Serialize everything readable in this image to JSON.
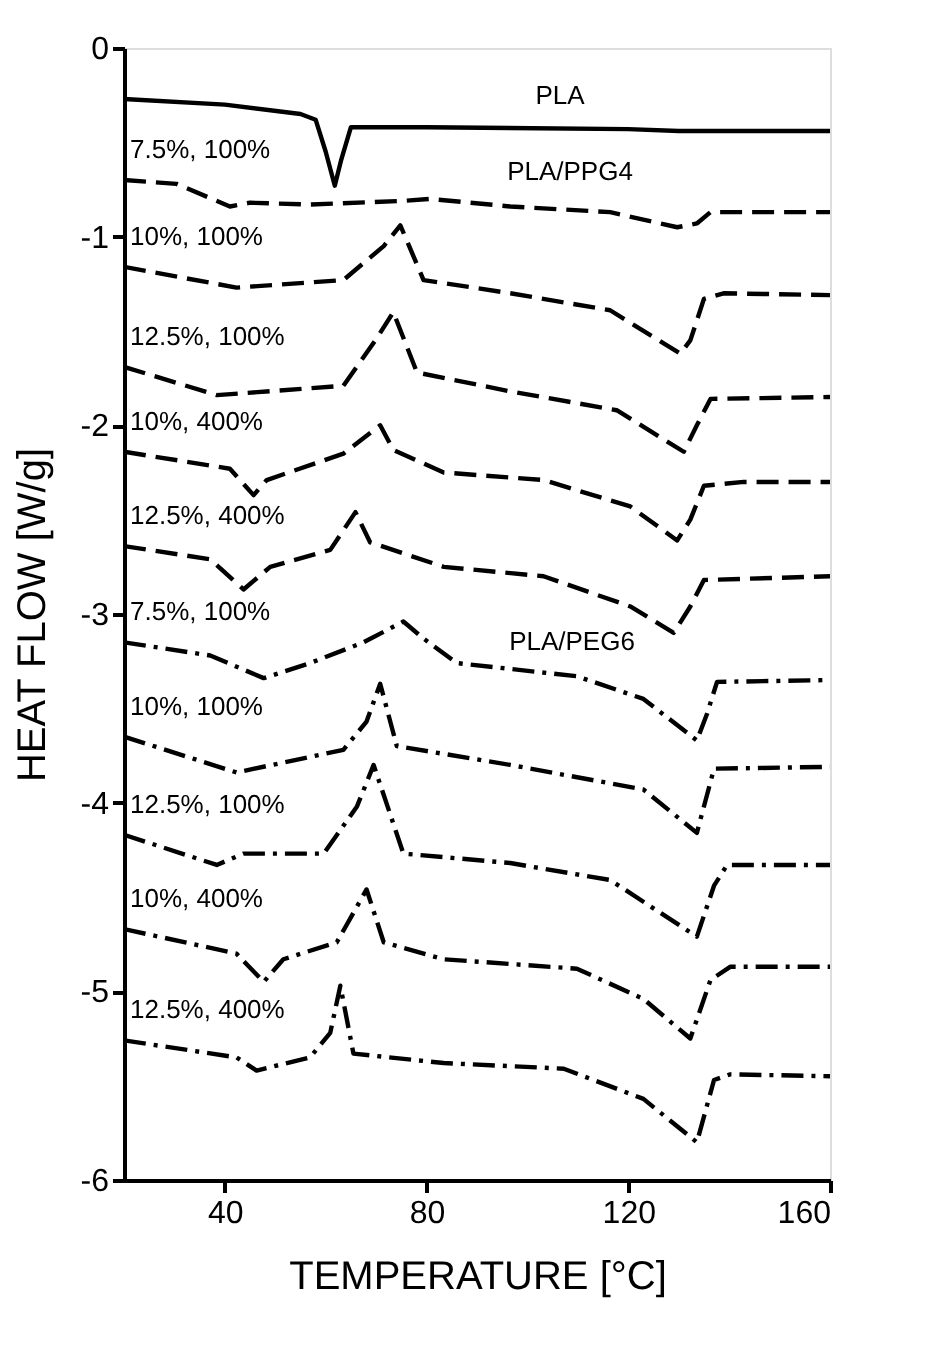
{
  "chart_data": {
    "type": "line",
    "xlabel": "TEMPERATURE [°C]",
    "ylabel": "HEAT FLOW [W/g]",
    "xlim": [
      20,
      160
    ],
    "ylim": [
      -6,
      0
    ],
    "xticks": [
      40,
      80,
      120,
      160
    ],
    "yticks": [
      -6,
      -5,
      -4,
      -3,
      -2,
      -1,
      0
    ],
    "grid": false,
    "marker": "none",
    "annotations": [
      "PLA",
      "PLA/PPG4",
      "PLA/PEG6"
    ],
    "series": [
      {
        "color": "#000000",
        "line_style": "solid",
        "x": [
          20,
          40,
          55,
          58,
          60,
          61.8,
          63,
          65,
          80,
          120,
          130,
          135,
          160
        ],
        "values": [
          -0.27,
          -0.3,
          -0.35,
          -0.38,
          -0.55,
          -0.73,
          -0.6,
          -0.42,
          -0.42,
          -0.43,
          -0.44,
          -0.44,
          -0.44
        ]
      },
      {
        "name": "7.5%, 100%",
        "color": "#000000",
        "line_style": "dashed",
        "x": [
          20,
          30.4,
          41,
          45,
          56.9,
          75.4,
          80.7,
          96.6,
          116.4,
          129.7,
          133.6,
          136.3,
          160
        ],
        "values": [
          -0.7,
          -0.72,
          -0.84,
          -0.82,
          -0.83,
          -0.81,
          -0.8,
          -0.84,
          -0.87,
          -0.95,
          -0.93,
          -0.87,
          -0.87
        ]
      },
      {
        "name": "10%, 100%",
        "color": "#000000",
        "line_style": "dashed",
        "x": [
          20,
          42.3,
          63.5,
          71.5,
          74.8,
          79.4,
          96.6,
          116.4,
          130.3,
          132.3,
          135,
          138.9,
          160
        ],
        "values": [
          -1.16,
          -1.27,
          -1.23,
          -1.05,
          -0.94,
          -1.23,
          -1.3,
          -1.39,
          -1.62,
          -1.55,
          -1.33,
          -1.3,
          -1.31
        ]
      },
      {
        "name": "12.5%, 100%",
        "color": "#000000",
        "line_style": "dashed",
        "x": [
          20,
          38.4,
          63.5,
          70.1,
          73.4,
          78.1,
          96.6,
          117.7,
          131,
          133.6,
          136.3,
          160
        ],
        "values": [
          -1.69,
          -1.84,
          -1.79,
          -1.54,
          -1.4,
          -1.72,
          -1.82,
          -1.92,
          -2.14,
          -2.0,
          -1.86,
          -1.85
        ]
      },
      {
        "name": "10%, 400%",
        "color": "#000000",
        "line_style": "dashed",
        "x": [
          20,
          41,
          45.7,
          48.3,
          63.5,
          70.8,
          73.4,
          83.4,
          103.2,
          120.4,
          129.7,
          132.3,
          135,
          142.9,
          160
        ],
        "values": [
          -2.14,
          -2.23,
          -2.37,
          -2.29,
          -2.15,
          -2.0,
          -2.13,
          -2.25,
          -2.29,
          -2.43,
          -2.61,
          -2.5,
          -2.32,
          -2.3,
          -2.3
        ]
      },
      {
        "name": "12.5%, 400%",
        "color": "#000000",
        "line_style": "dashed",
        "x": [
          20,
          37.1,
          43.7,
          49,
          60.9,
          65.9,
          68.8,
          83.4,
          103.2,
          120.4,
          129,
          132.3,
          135,
          160
        ],
        "values": [
          -2.64,
          -2.71,
          -2.87,
          -2.75,
          -2.66,
          -2.46,
          -2.62,
          -2.75,
          -2.8,
          -2.96,
          -3.1,
          -2.96,
          -2.82,
          -2.8
        ]
      },
      {
        "name": "7.5%, 100%",
        "color": "#000000",
        "line_style": "dashdot",
        "x": [
          20,
          37.1,
          47.7,
          56.9,
          67.5,
          75.4,
          79.4,
          86,
          109.8,
          123,
          133.6,
          135.6,
          137.6,
          160
        ],
        "values": [
          -3.15,
          -3.22,
          -3.34,
          -3.26,
          -3.15,
          -3.04,
          -3.13,
          -3.26,
          -3.33,
          -3.45,
          -3.67,
          -3.53,
          -3.36,
          -3.35
        ]
      },
      {
        "name": "10%, 100%",
        "color": "#000000",
        "line_style": "dashdot",
        "x": [
          20,
          42.3,
          63.5,
          68.1,
          70.8,
          74.1,
          96.6,
          123,
          133.6,
          137,
          160
        ],
        "values": [
          -3.65,
          -3.84,
          -3.72,
          -3.57,
          -3.37,
          -3.7,
          -3.8,
          -3.93,
          -4.16,
          -3.82,
          -3.81
        ]
      },
      {
        "name": "12.5%, 100%",
        "color": "#000000",
        "line_style": "dashdot",
        "x": [
          20,
          38.4,
          43.7,
          59.6,
          66.2,
          69.5,
          75.4,
          96.6,
          116.4,
          133.6,
          137,
          139.6,
          160
        ],
        "values": [
          -4.17,
          -4.33,
          -4.27,
          -4.27,
          -4.02,
          -3.8,
          -4.27,
          -4.32,
          -4.41,
          -4.71,
          -4.44,
          -4.33,
          -4.33
        ]
      },
      {
        "name": "10%, 400%",
        "color": "#000000",
        "line_style": "dashdot",
        "x": [
          20,
          42.3,
          47.7,
          51.6,
          62.2,
          68.1,
          71.5,
          83.4,
          109.8,
          123,
          132.3,
          136.3,
          140.2,
          160
        ],
        "values": [
          -4.67,
          -4.8,
          -4.95,
          -4.83,
          -4.74,
          -4.46,
          -4.74,
          -4.83,
          -4.88,
          -5.04,
          -5.25,
          -4.94,
          -4.87,
          -4.87
        ]
      },
      {
        "name": "12.5%, 400%",
        "color": "#000000",
        "line_style": "dashdot",
        "x": [
          20,
          42.3,
          46.3,
          56.9,
          60.9,
          62.9,
          65.5,
          83.4,
          107.2,
          123,
          133.6,
          137,
          140.2,
          160
        ],
        "values": [
          -5.26,
          -5.35,
          -5.42,
          -5.35,
          -5.22,
          -4.97,
          -5.33,
          -5.38,
          -5.41,
          -5.57,
          -5.8,
          -5.47,
          -5.44,
          -5.45
        ]
      }
    ]
  }
}
